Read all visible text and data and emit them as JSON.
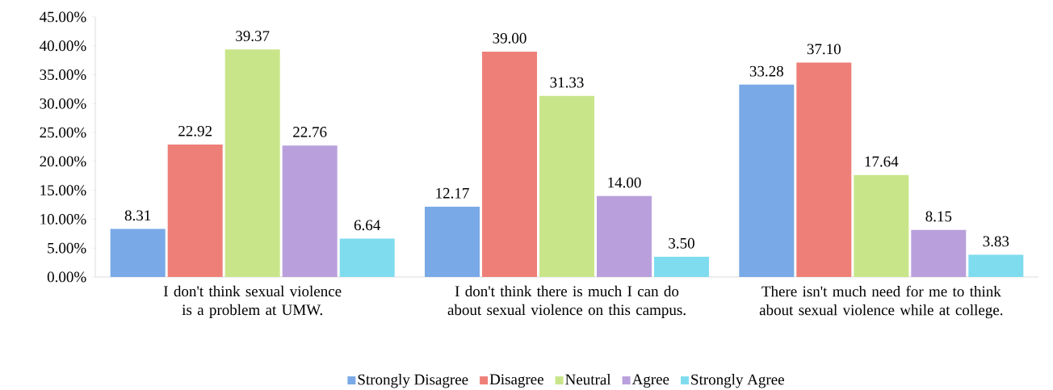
{
  "chart_data": {
    "type": "bar",
    "categories": [
      "I don't think sexual violence is a problem at UMW.",
      "I don't think there is much I can do about sexual violence on this campus.",
      "There isn't much need for me to think about sexual violence while at college."
    ],
    "series": [
      {
        "name": "Strongly Disagree",
        "color": "#79a9e6",
        "values": [
          8.31,
          12.17,
          33.28
        ],
        "value_labels": [
          "8.31",
          "12.17",
          "33.28"
        ]
      },
      {
        "name": "Disagree",
        "color": "#ee7f78",
        "values": [
          22.92,
          39.0,
          37.1
        ],
        "value_labels": [
          "22.92",
          "39.00",
          "37.10"
        ]
      },
      {
        "name": "Neutral",
        "color": "#c9e58a",
        "values": [
          39.37,
          31.33,
          17.64
        ],
        "value_labels": [
          "39.37",
          "31.33",
          "17.64"
        ]
      },
      {
        "name": "Agree",
        "color": "#b9a0dc",
        "values": [
          22.76,
          14.0,
          8.15
        ],
        "value_labels": [
          "22.76",
          "14.00",
          "8.15"
        ]
      },
      {
        "name": "Strongly Agree",
        "color": "#7fdcef",
        "values": [
          6.64,
          3.5,
          3.83
        ],
        "value_labels": [
          "6.64",
          "3.50",
          "3.83"
        ]
      }
    ],
    "ylim": [
      0,
      45
    ],
    "yticks": [
      {
        "value": 0,
        "label": "0.00%"
      },
      {
        "value": 5,
        "label": "5.00%"
      },
      {
        "value": 10,
        "label": "10.00%"
      },
      {
        "value": 15,
        "label": "15.00%"
      },
      {
        "value": 20,
        "label": "20.00%"
      },
      {
        "value": 25,
        "label": "25.00%"
      },
      {
        "value": 30,
        "label": "30.00%"
      },
      {
        "value": 35,
        "label": "35.00%"
      },
      {
        "value": 40,
        "label": "40.00%"
      },
      {
        "value": 45,
        "label": "45.00%"
      }
    ],
    "grid": false,
    "legend": "bottom"
  }
}
